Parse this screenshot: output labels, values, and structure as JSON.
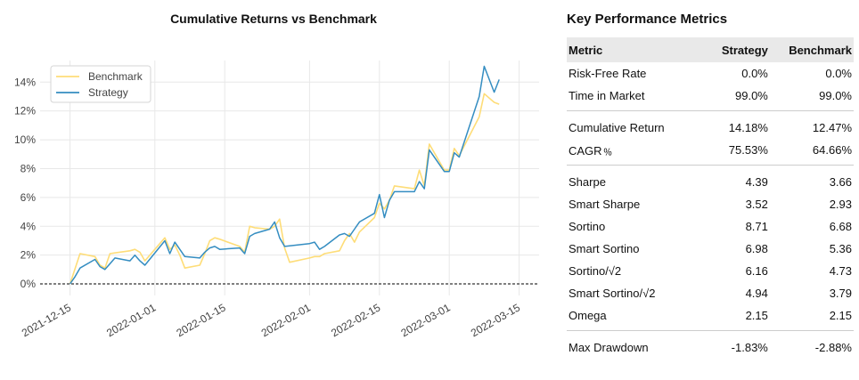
{
  "chart_data": {
    "type": "line",
    "title": "Cumulative Returns vs Benchmark",
    "xlabel": "",
    "ylabel": "",
    "x_ticks": [
      "2021-12-15",
      "2022-01-01",
      "2022-01-15",
      "2022-02-01",
      "2022-02-15",
      "2022-03-01",
      "2022-03-15"
    ],
    "y_ticks": [
      "0%",
      "2%",
      "4%",
      "6%",
      "8%",
      "10%",
      "12%",
      "14%"
    ],
    "ylim": [
      -0.8,
      15.5
    ],
    "xlim": [
      "2021-12-09",
      "2022-03-19"
    ],
    "grid": true,
    "zero_line": "dashed",
    "legend_position": "top-left",
    "series": [
      {
        "name": "Benchmark",
        "color": "#fedd78",
        "points": [
          [
            "2021-12-15",
            0.0
          ],
          [
            "2021-12-17",
            2.1
          ],
          [
            "2021-12-20",
            1.9
          ],
          [
            "2021-12-21",
            1.3
          ],
          [
            "2021-12-22",
            1.1
          ],
          [
            "2021-12-23",
            2.1
          ],
          [
            "2021-12-27",
            2.3
          ],
          [
            "2021-12-28",
            2.4
          ],
          [
            "2021-12-29",
            2.2
          ],
          [
            "2021-12-30",
            1.6
          ],
          [
            "2022-01-03",
            3.2
          ],
          [
            "2022-01-04",
            2.4
          ],
          [
            "2022-01-05",
            2.7
          ],
          [
            "2022-01-06",
            2.0
          ],
          [
            "2022-01-07",
            1.1
          ],
          [
            "2022-01-10",
            1.3
          ],
          [
            "2022-01-11",
            2.1
          ],
          [
            "2022-01-12",
            3.0
          ],
          [
            "2022-01-13",
            3.2
          ],
          [
            "2022-01-14",
            3.1
          ],
          [
            "2022-01-18",
            2.6
          ],
          [
            "2022-01-19",
            2.2
          ],
          [
            "2022-01-20",
            4.0
          ],
          [
            "2022-01-21",
            3.9
          ],
          [
            "2022-01-24",
            3.8
          ],
          [
            "2022-01-25",
            4.0
          ],
          [
            "2022-01-26",
            4.5
          ],
          [
            "2022-01-27",
            2.5
          ],
          [
            "2022-01-28",
            1.5
          ],
          [
            "2022-02-01",
            1.8
          ],
          [
            "2022-02-02",
            1.9
          ],
          [
            "2022-02-03",
            1.9
          ],
          [
            "2022-02-04",
            2.1
          ],
          [
            "2022-02-07",
            2.3
          ],
          [
            "2022-02-08",
            3.0
          ],
          [
            "2022-02-09",
            3.5
          ],
          [
            "2022-02-10",
            2.9
          ],
          [
            "2022-02-11",
            3.6
          ],
          [
            "2022-02-14",
            4.6
          ],
          [
            "2022-02-15",
            5.6
          ],
          [
            "2022-02-16",
            5.2
          ],
          [
            "2022-02-17",
            5.8
          ],
          [
            "2022-02-18",
            6.8
          ],
          [
            "2022-02-22",
            6.6
          ],
          [
            "2022-02-23",
            7.9
          ],
          [
            "2022-02-24",
            6.8
          ],
          [
            "2022-02-25",
            9.7
          ],
          [
            "2022-02-28",
            7.9
          ],
          [
            "2022-03-01",
            7.9
          ],
          [
            "2022-03-02",
            9.4
          ],
          [
            "2022-03-03",
            8.9
          ],
          [
            "2022-03-07",
            11.6
          ],
          [
            "2022-03-08",
            13.2
          ],
          [
            "2022-03-10",
            12.6
          ],
          [
            "2022-03-11",
            12.47
          ]
        ]
      },
      {
        "name": "Strategy",
        "color": "#348dc1",
        "points": [
          [
            "2021-12-15",
            0.0
          ],
          [
            "2021-12-16",
            0.5
          ],
          [
            "2021-12-17",
            1.1
          ],
          [
            "2021-12-20",
            1.7
          ],
          [
            "2021-12-21",
            1.2
          ],
          [
            "2021-12-22",
            1.0
          ],
          [
            "2021-12-23",
            1.4
          ],
          [
            "2021-12-24",
            1.8
          ],
          [
            "2021-12-27",
            1.6
          ],
          [
            "2021-12-28",
            2.0
          ],
          [
            "2021-12-29",
            1.6
          ],
          [
            "2021-12-30",
            1.3
          ],
          [
            "2022-01-03",
            3.0
          ],
          [
            "2022-01-04",
            2.1
          ],
          [
            "2022-01-05",
            2.9
          ],
          [
            "2022-01-06",
            2.4
          ],
          [
            "2022-01-07",
            1.9
          ],
          [
            "2022-01-10",
            1.8
          ],
          [
            "2022-01-11",
            2.2
          ],
          [
            "2022-01-12",
            2.5
          ],
          [
            "2022-01-13",
            2.6
          ],
          [
            "2022-01-14",
            2.4
          ],
          [
            "2022-01-18",
            2.5
          ],
          [
            "2022-01-19",
            2.1
          ],
          [
            "2022-01-20",
            3.3
          ],
          [
            "2022-01-21",
            3.5
          ],
          [
            "2022-01-24",
            3.8
          ],
          [
            "2022-01-25",
            4.3
          ],
          [
            "2022-01-26",
            3.2
          ],
          [
            "2022-01-27",
            2.6
          ],
          [
            "2022-02-01",
            2.8
          ],
          [
            "2022-02-02",
            2.9
          ],
          [
            "2022-02-03",
            2.4
          ],
          [
            "2022-02-04",
            2.6
          ],
          [
            "2022-02-07",
            3.4
          ],
          [
            "2022-02-08",
            3.5
          ],
          [
            "2022-02-09",
            3.3
          ],
          [
            "2022-02-10",
            3.8
          ],
          [
            "2022-02-11",
            4.3
          ],
          [
            "2022-02-14",
            4.9
          ],
          [
            "2022-02-15",
            6.2
          ],
          [
            "2022-02-16",
            4.6
          ],
          [
            "2022-02-17",
            5.8
          ],
          [
            "2022-02-18",
            6.4
          ],
          [
            "2022-02-22",
            6.4
          ],
          [
            "2022-02-23",
            7.1
          ],
          [
            "2022-02-24",
            6.6
          ],
          [
            "2022-02-25",
            9.3
          ],
          [
            "2022-02-28",
            7.8
          ],
          [
            "2022-03-01",
            7.8
          ],
          [
            "2022-03-02",
            9.1
          ],
          [
            "2022-03-03",
            8.8
          ],
          [
            "2022-03-07",
            13.0
          ],
          [
            "2022-03-08",
            15.1
          ],
          [
            "2022-03-10",
            13.3
          ],
          [
            "2022-03-11",
            14.18
          ]
        ]
      }
    ]
  },
  "metrics": {
    "title": "Key Performance Metrics",
    "headers": [
      "Metric",
      "Strategy",
      "Benchmark"
    ],
    "rows": [
      {
        "label": "Risk-Free Rate",
        "strategy": "0.0%",
        "benchmark": "0.0%",
        "group": 0
      },
      {
        "label": "Time in Market",
        "strategy": "99.0%",
        "benchmark": "99.0%",
        "group": 0
      },
      {
        "label": "Cumulative Return",
        "strategy": "14.18%",
        "benchmark": "12.47%",
        "group": 1
      },
      {
        "label": "CAGR﹪",
        "strategy": "75.53%",
        "benchmark": "64.66%",
        "group": 1
      },
      {
        "label": "Sharpe",
        "strategy": "4.39",
        "benchmark": "3.66",
        "group": 2
      },
      {
        "label": "Smart Sharpe",
        "strategy": "3.52",
        "benchmark": "2.93",
        "group": 2
      },
      {
        "label": "Sortino",
        "strategy": "8.71",
        "benchmark": "6.68",
        "group": 2
      },
      {
        "label": "Smart Sortino",
        "strategy": "6.98",
        "benchmark": "5.36",
        "group": 2
      },
      {
        "label": "Sortino/√2",
        "strategy": "6.16",
        "benchmark": "4.73",
        "group": 2
      },
      {
        "label": "Smart Sortino/√2",
        "strategy": "4.94",
        "benchmark": "3.79",
        "group": 2
      },
      {
        "label": "Omega",
        "strategy": "2.15",
        "benchmark": "2.15",
        "group": 2
      },
      {
        "label": "Max Drawdown",
        "strategy": "-1.83%",
        "benchmark": "-2.88%",
        "group": 3
      }
    ]
  }
}
